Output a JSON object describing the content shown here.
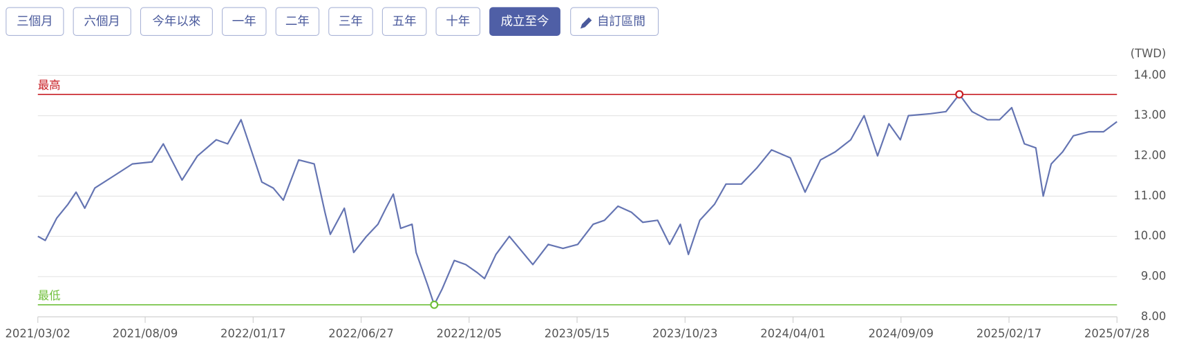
{
  "buttons": [
    {
      "label": "三個月",
      "active": false
    },
    {
      "label": "六個月",
      "active": false
    },
    {
      "label": "今年以來",
      "active": false
    },
    {
      "label": "一年",
      "active": false
    },
    {
      "label": "二年",
      "active": false
    },
    {
      "label": "三年",
      "active": false
    },
    {
      "label": "五年",
      "active": false
    },
    {
      "label": "十年",
      "active": false
    },
    {
      "label": "成立至今",
      "active": true
    },
    {
      "label": "自訂區間",
      "active": false
    }
  ],
  "chart_data": {
    "type": "line",
    "y_unit": "(TWD)",
    "color": "#6474b2",
    "grid": true,
    "xlim": [
      "2021/03/02",
      "2025/07/28"
    ],
    "xticks": [
      "2021/03/02",
      "2021/08/09",
      "2022/01/17",
      "2022/06/27",
      "2022/12/05",
      "2023/05/15",
      "2023/10/23",
      "2024/04/01",
      "2024/09/09",
      "2025/02/17",
      "2025/07/28"
    ],
    "ylim": [
      8,
      14
    ],
    "yticks": [
      {
        "value": 8,
        "label": "8.00"
      },
      {
        "value": 9,
        "label": "9.00"
      },
      {
        "value": 10,
        "label": "10.00"
      },
      {
        "value": 11,
        "label": "11.00"
      },
      {
        "value": 12,
        "label": "12.00"
      },
      {
        "value": 13,
        "label": "13.00"
      },
      {
        "value": 14,
        "label": "14.00"
      }
    ],
    "max": {
      "label": "最高",
      "x": "2024/12/05",
      "value": 13.53,
      "color": "#c81e24"
    },
    "min": {
      "label": "最低",
      "x": "2022/10/14",
      "value": 8.3,
      "color": "#6fbf3a"
    },
    "x": [
      "2021/03/02",
      "2021/03/13",
      "2021/03/30",
      "2021/04/16",
      "2021/04/28",
      "2021/05/11",
      "2021/05/26",
      "2021/06/23",
      "2021/07/21",
      "2021/08/19",
      "2021/09/05",
      "2021/10/03",
      "2021/10/26",
      "2021/11/23",
      "2021/12/10",
      "2021/12/30",
      "2022/01/19",
      "2022/01/30",
      "2022/02/16",
      "2022/03/03",
      "2022/03/26",
      "2022/04/18",
      "2022/05/04",
      "2022/05/12",
      "2022/06/02",
      "2022/06/16",
      "2022/07/05",
      "2022/07/22",
      "2022/08/03",
      "2022/08/14",
      "2022/08/25",
      "2022/09/11",
      "2022/09/17",
      "2022/10/04",
      "2022/10/14",
      "2022/10/26",
      "2022/11/13",
      "2022/11/30",
      "2022/12/17",
      "2022/12/28",
      "2023/01/14",
      "2023/02/03",
      "2023/02/23",
      "2023/03/10",
      "2023/04/02",
      "2023/04/24",
      "2023/05/16",
      "2023/06/08",
      "2023/06/25",
      "2023/07/15",
      "2023/08/04",
      "2023/08/21",
      "2023/09/12",
      "2023/09/30",
      "2023/10/16",
      "2023/10/28",
      "2023/11/14",
      "2023/12/06",
      "2023/12/23",
      "2024/01/15",
      "2024/02/07",
      "2024/02/29",
      "2024/03/28",
      "2024/04/19",
      "2024/05/12",
      "2024/06/03",
      "2024/06/26",
      "2024/07/16",
      "2024/08/05",
      "2024/08/22",
      "2024/09/08",
      "2024/09/20",
      "2024/10/23",
      "2024/11/15",
      "2024/12/05",
      "2024/12/24",
      "2025/01/16",
      "2025/02/03",
      "2025/02/21",
      "2025/03/12",
      "2025/03/29",
      "2025/04/09",
      "2025/04/21",
      "2025/05/08",
      "2025/05/24",
      "2025/06/16",
      "2025/07/08",
      "2025/07/28"
    ],
    "values": [
      10.0,
      9.9,
      10.45,
      10.8,
      11.1,
      10.7,
      11.2,
      11.5,
      11.8,
      11.85,
      12.3,
      11.4,
      12.0,
      12.4,
      12.3,
      12.9,
      11.9,
      11.35,
      11.2,
      10.9,
      11.9,
      11.8,
      10.6,
      10.05,
      10.7,
      9.6,
      10.0,
      10.3,
      10.7,
      11.05,
      10.2,
      10.3,
      9.6,
      8.8,
      8.3,
      8.7,
      9.4,
      9.3,
      9.1,
      8.95,
      9.55,
      10.0,
      9.6,
      9.3,
      9.8,
      9.7,
      9.8,
      10.3,
      10.4,
      10.75,
      10.6,
      10.35,
      10.4,
      9.8,
      10.3,
      9.55,
      10.4,
      10.8,
      11.3,
      11.3,
      11.7,
      12.15,
      11.95,
      11.1,
      11.9,
      12.1,
      12.4,
      13.0,
      12.0,
      12.8,
      12.4,
      13.0,
      13.05,
      13.1,
      13.53,
      13.1,
      12.9,
      12.9,
      13.2,
      12.3,
      12.2,
      11.0,
      11.8,
      12.1,
      12.5,
      12.6,
      12.6,
      12.85
    ]
  }
}
